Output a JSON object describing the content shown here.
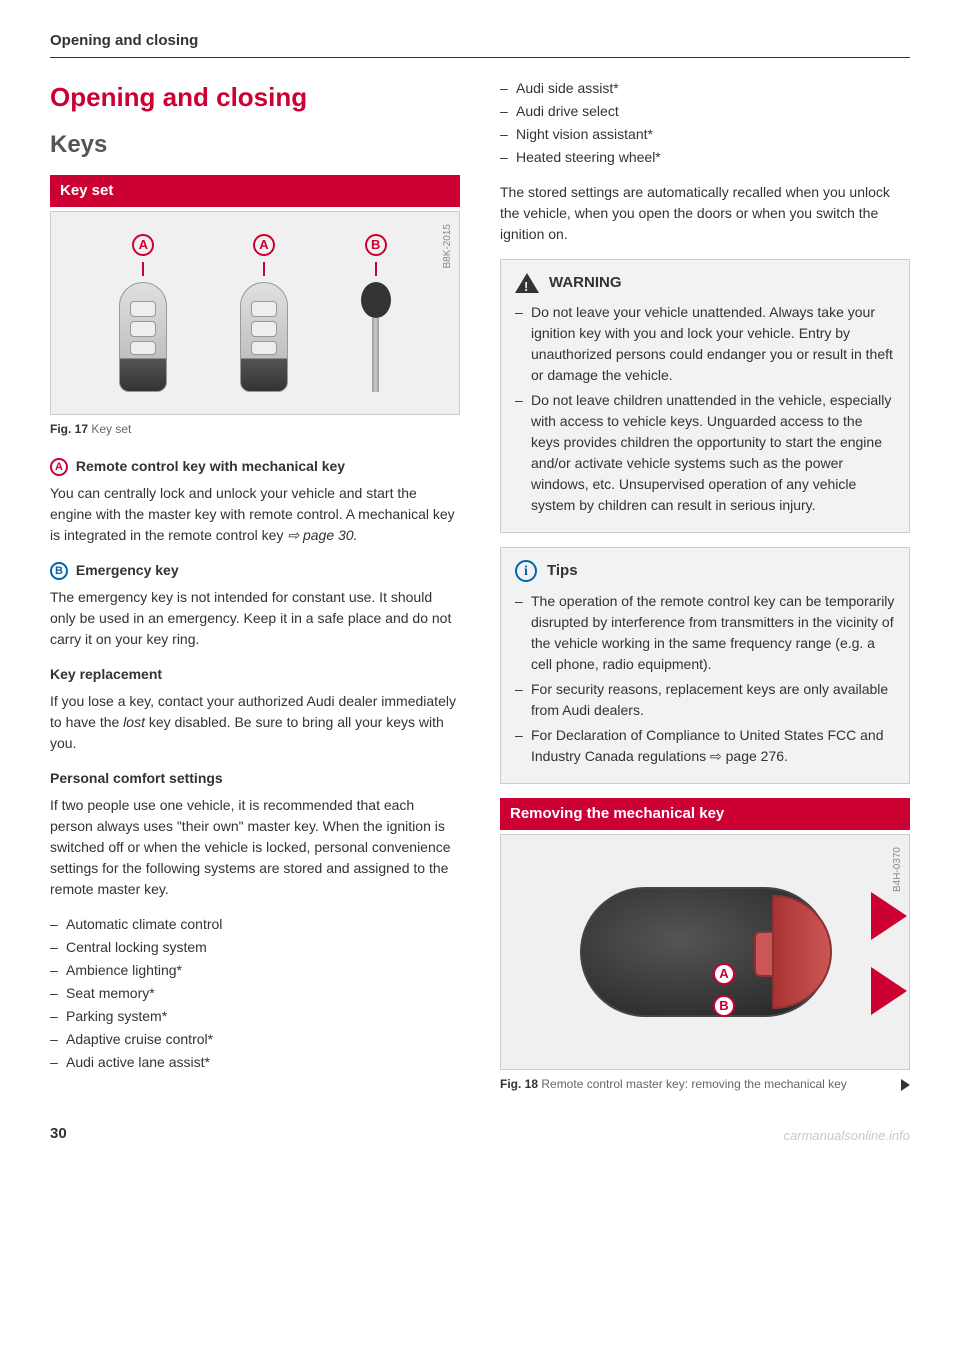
{
  "page_header": "Opening and closing",
  "section_title": "Opening and closing",
  "sub_title": "Keys",
  "band1": "Key set",
  "fig17": {
    "code": "B8K-2015",
    "markerA": "A",
    "markerB": "B",
    "caption_bold": "Fig. 17",
    "caption_rest": " Key set"
  },
  "headA": "Remote control key with mechanical key",
  "paraA": "You can centrally lock and unlock your vehicle and start the engine with the master key with remote control. A mechanical key is integrated in the remote control key ",
  "paraA_ref": "⇨ page 30.",
  "headB": "Emergency key",
  "paraB": "The emergency key is not intended for constant use. It should only be used in an emergency. Keep it in a safe place and do not carry it on your key ring.",
  "headC": "Key replacement",
  "paraC_1": "If you lose a key, contact your authorized Audi dealer immediately to have the ",
  "paraC_it": "lost",
  "paraC_2": " key disabled. Be sure to bring all your keys with you.",
  "headD": "Personal comfort settings",
  "paraD": "If two people use one vehicle, it is recommended that each person always uses \"their own\" master key. When the ignition is switched off or when the vehicle is locked, personal convenience settings for the following systems are stored and assigned to the remote master key.",
  "comfort_list": [
    "Automatic climate control",
    "Central locking system",
    "Ambience lighting*",
    "Seat memory*",
    "Parking system*",
    "Adaptive cruise control*",
    "Audi active lane assist*"
  ],
  "comfort_list2": [
    "Audi side assist*",
    "Audi drive select",
    "Night vision assistant*",
    "Heated steering wheel*"
  ],
  "paraE": "The stored settings are automatically recalled when you unlock the vehicle, when you open the doors or when you switch the ignition on.",
  "warning": {
    "title": "WARNING",
    "items": [
      "Do not leave your vehicle unattended. Always take your ignition key with you and lock your vehicle. Entry by unauthorized persons could endanger you or result in theft or damage the vehicle.",
      "Do not leave children unattended in the vehicle, especially with access to vehicle keys. Unguarded access to the keys provides children the opportunity to start the engine and/or activate vehicle systems such as the power windows, etc. Unsupervised operation of any vehicle system by children can result in serious injury."
    ]
  },
  "tips": {
    "title": "Tips",
    "icon": "i",
    "items": [
      "The operation of the remote control key can be temporarily disrupted by interference from transmitters in the vicinity of the vehicle working in the same frequency range (e.g. a cell phone, radio equipment).",
      "For security reasons, replacement keys are only available from Audi dealers.",
      "For Declaration of Compliance to United States FCC and Industry Canada regulations ⇨ page 276."
    ]
  },
  "band2": "Removing the mechanical key",
  "fig18": {
    "code": "B4H-0370",
    "markerA": "A",
    "markerB": "B",
    "caption_bold": "Fig. 18",
    "caption_rest": " Remote control master key: removing the mechanical key"
  },
  "page_num": "30",
  "watermark": "carmanualsonline.info"
}
